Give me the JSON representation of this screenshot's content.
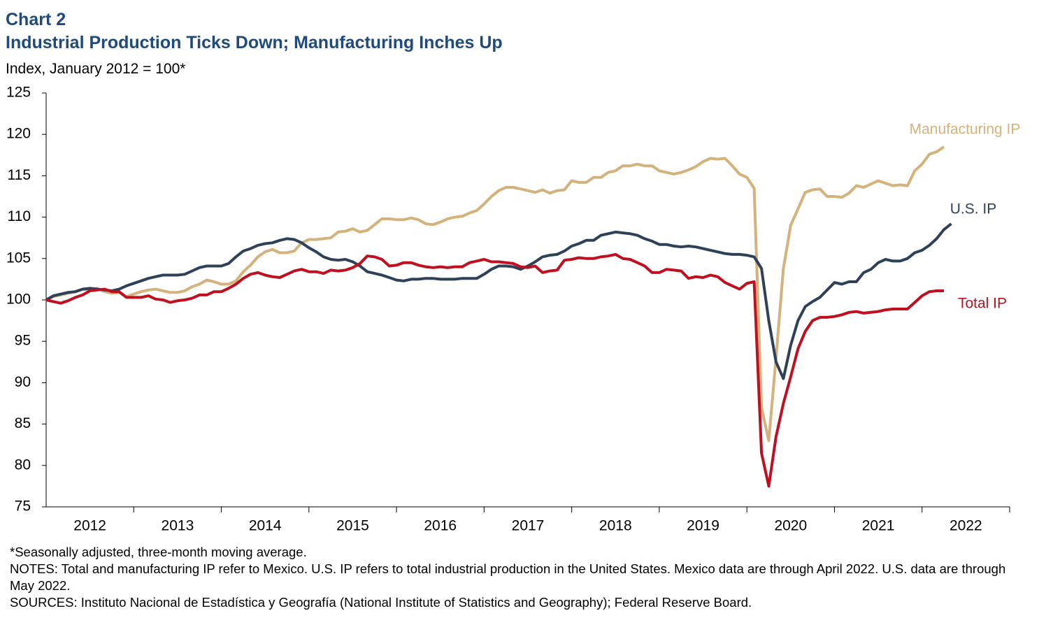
{
  "chart_data": {
    "type": "line",
    "title": "Chart 2",
    "subtitle": "Industrial Production Ticks Down; Manufacturing Inches Up",
    "y_label": "Index, January 2012 = 100*",
    "categories": [
      "2012",
      "2013",
      "2014",
      "2015",
      "2016",
      "2017",
      "2018",
      "2019",
      "2020",
      "2021",
      "2022"
    ],
    "ylim": [
      75,
      125
    ],
    "yticks": [
      75,
      80,
      85,
      90,
      95,
      100,
      105,
      110,
      115,
      120,
      125
    ],
    "grid": false,
    "series": [
      {
        "name": "Manufacturing IP",
        "color": "#d3b27c",
        "values": [
          [
            100,
            100.4,
            100.6,
            100.8,
            101.0,
            101.3,
            101.2,
            101.4,
            101.0,
            100.8,
            100.9,
            100.4
          ],
          [
            100.7,
            101.0,
            101.2,
            101.3,
            101.1,
            100.9,
            100.9,
            101.1,
            101.6,
            101.9,
            102.4,
            102.2
          ],
          [
            101.9,
            101.9,
            102.3,
            103.4,
            104.2,
            105.2,
            105.8,
            106.1,
            105.7,
            105.7,
            105.9,
            106.9
          ],
          [
            107.3,
            107.3,
            107.4,
            107.5,
            108.2,
            108.3,
            108.6,
            108.2,
            108.4,
            109.1,
            109.8,
            109.8
          ],
          [
            109.7,
            109.7,
            109.9,
            109.7,
            109.2,
            109.1,
            109.4,
            109.8,
            110.0,
            110.1,
            110.5,
            110.8
          ],
          [
            111.6,
            112.5,
            113.2,
            113.6,
            113.6,
            113.4,
            113.2,
            113.0,
            113.3,
            112.9,
            113.2,
            113.3
          ],
          [
            114.4,
            114.2,
            114.2,
            114.8,
            114.8,
            115.4,
            115.6,
            116.2,
            116.2,
            116.4,
            116.2,
            116.2
          ],
          [
            115.6,
            115.4,
            115.2,
            115.4,
            115.7,
            116.1,
            116.7,
            117.1,
            117.0,
            117.1,
            116.2,
            115.2
          ],
          [
            114.8,
            113.5,
            87.0,
            83.0,
            93.0,
            103.8,
            109.0,
            111.0,
            113.0,
            113.3,
            113.4,
            112.5
          ],
          [
            112.5,
            112.4,
            112.9,
            113.8,
            113.6,
            114.0,
            114.4,
            114.1,
            113.8,
            113.9,
            113.8,
            115.6
          ],
          [
            116.4,
            117.6,
            117.9,
            118.5
          ]
        ]
      },
      {
        "name": "U.S. IP",
        "color": "#2f4159",
        "values": [
          [
            100,
            100.5,
            100.7,
            100.9,
            101.0,
            101.3,
            101.4,
            101.3,
            101.2,
            101.1,
            101.3,
            101.7
          ],
          [
            102.0,
            102.3,
            102.6,
            102.8,
            103.0,
            103.0,
            103.0,
            103.1,
            103.5,
            103.9,
            104.1,
            104.1
          ],
          [
            104.1,
            104.4,
            105.2,
            105.9,
            106.2,
            106.6,
            106.8,
            106.9,
            107.2,
            107.4,
            107.3,
            106.9
          ],
          [
            106.3,
            105.8,
            105.2,
            104.9,
            104.8,
            104.9,
            104.6,
            104.1,
            103.4,
            103.2,
            103.0,
            102.7
          ],
          [
            102.4,
            102.3,
            102.5,
            102.5,
            102.6,
            102.6,
            102.5,
            102.5,
            102.5,
            102.6,
            102.6,
            102.6
          ],
          [
            103.1,
            103.7,
            104.1,
            104.1,
            104.0,
            103.7,
            104.1,
            104.6,
            105.2,
            105.4,
            105.5,
            105.9
          ],
          [
            106.5,
            106.8,
            107.2,
            107.2,
            107.8,
            108.0,
            108.2,
            108.1,
            108.0,
            107.8,
            107.4,
            107.1
          ],
          [
            106.7,
            106.7,
            106.5,
            106.4,
            106.5,
            106.4,
            106.2,
            106.0,
            105.8,
            105.6,
            105.5,
            105.5
          ],
          [
            105.4,
            105.2,
            103.8,
            97.5,
            92.5,
            90.5,
            94.5,
            97.5,
            99.2,
            99.8,
            100.3,
            101.2
          ],
          [
            102.1,
            101.9,
            102.2,
            102.2,
            103.3,
            103.7,
            104.5,
            104.9,
            104.7,
            104.7,
            105.0,
            105.7
          ],
          [
            106.0,
            106.6,
            107.4,
            108.5,
            109.2
          ]
        ]
      },
      {
        "name": "Total IP",
        "color": "#c00f1f",
        "values": [
          [
            100,
            99.8,
            99.6,
            99.9,
            100.3,
            100.6,
            101.1,
            101.2,
            101.3,
            101.0,
            101.0,
            100.3
          ],
          [
            100.3,
            100.3,
            100.5,
            100.1,
            100.0,
            99.7,
            99.9,
            100.0,
            100.2,
            100.6,
            100.6,
            101.0
          ],
          [
            101.0,
            101.4,
            101.9,
            102.6,
            103.1,
            103.3,
            103.0,
            102.8,
            102.7,
            103.1,
            103.5,
            103.7
          ],
          [
            103.4,
            103.4,
            103.2,
            103.6,
            103.5,
            103.6,
            103.9,
            104.4,
            105.3,
            105.2,
            104.9,
            104.1
          ],
          [
            104.2,
            104.5,
            104.5,
            104.2,
            104.0,
            103.9,
            104.0,
            103.9,
            104.0,
            104.0,
            104.5,
            104.7
          ],
          [
            104.9,
            104.6,
            104.6,
            104.5,
            104.4,
            104.0,
            103.9,
            104.1,
            103.3,
            103.5,
            103.6,
            104.8
          ],
          [
            104.9,
            105.1,
            105.0,
            105.0,
            105.2,
            105.3,
            105.5,
            105.0,
            104.9,
            104.5,
            104.1,
            103.3
          ],
          [
            103.3,
            103.7,
            103.6,
            103.5,
            102.6,
            102.8,
            102.7,
            103.0,
            102.8,
            102.1,
            101.7,
            101.3
          ],
          [
            102.0,
            102.2,
            81.5,
            77.5,
            83.5,
            87.5,
            90.7,
            94.1,
            96.2,
            97.5,
            97.9,
            97.9
          ],
          [
            98.0,
            98.2,
            98.5,
            98.6,
            98.4,
            98.5,
            98.6,
            98.8,
            98.9,
            98.9,
            98.9,
            99.7
          ],
          [
            100.5,
            101.0,
            101.1,
            101.1
          ]
        ]
      }
    ],
    "notes": [
      "*Seasonally adjusted, three-month moving average.",
      "NOTES: Total and manufacturing IP refer to Mexico. U.S. IP refers to total industrial production in the United States. Mexico data are through April 2022. U.S. data are through May 2022.",
      "SOURCES: Instituto Nacional de Estadística y Geografía (National Institute of Statistics and Geography); Federal Reserve Board."
    ]
  }
}
